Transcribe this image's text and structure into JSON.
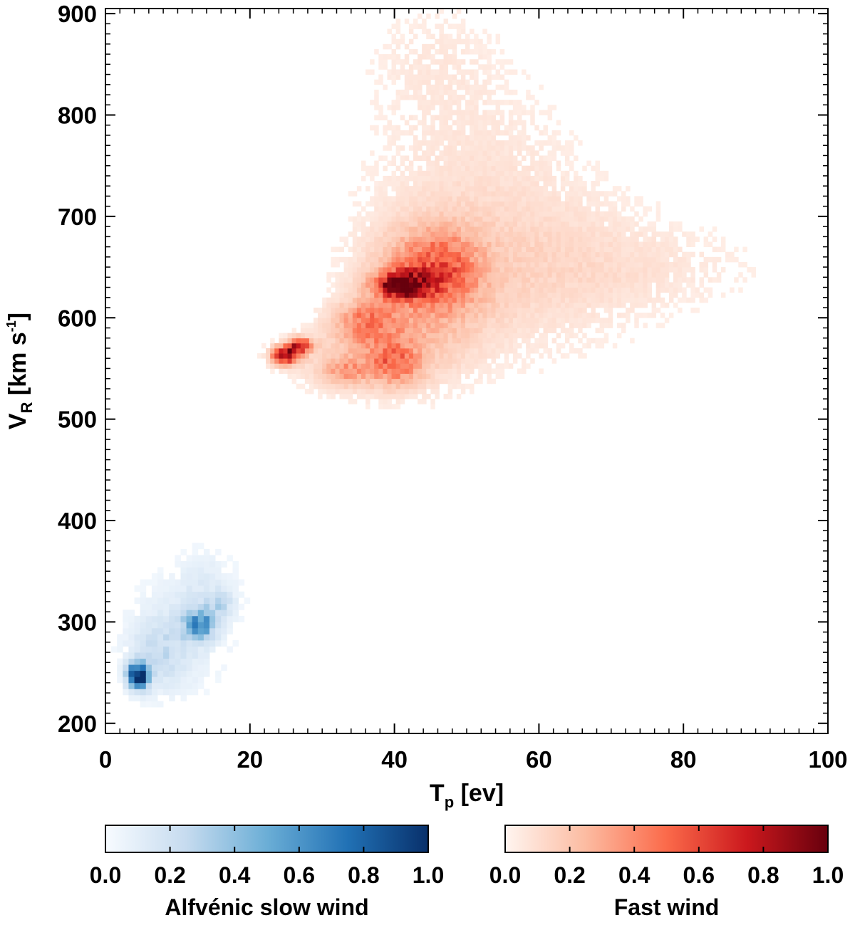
{
  "chart_data": {
    "type": "heatmap",
    "xlabel": {
      "main": "T",
      "sub": "p",
      "unit": " [ev]"
    },
    "ylabel": {
      "main": "V",
      "sub": "R",
      "unit_pre": " [km s",
      "sup": "-1",
      "unit_post": "]"
    },
    "xlim": [
      0,
      100
    ],
    "ylim": [
      190,
      905
    ],
    "x_ticks": [
      0,
      20,
      40,
      60,
      80,
      100
    ],
    "y_ticks": [
      200,
      300,
      400,
      500,
      600,
      700,
      800,
      900
    ],
    "x_tick_labels": [
      "0",
      "20",
      "40",
      "60",
      "80",
      "100"
    ],
    "y_tick_labels": [
      "200",
      "300",
      "400",
      "500",
      "600",
      "700",
      "800",
      "900"
    ],
    "series": [
      {
        "name": "Alfvénic slow wind",
        "colormap": "blues",
        "color_low": "#f7fbff",
        "color_high": "#08306b",
        "bin_size": [
          0.8,
          6
        ],
        "blobs": [
          {
            "x": 4.5,
            "y": 247,
            "sx": 1.0,
            "sy": 9,
            "amp": 1.0
          },
          {
            "x": 13,
            "y": 298,
            "sx": 1.5,
            "sy": 10,
            "amp": 0.55
          },
          {
            "x": 10,
            "y": 285,
            "sx": 4.5,
            "sy": 35,
            "amp": 0.14
          },
          {
            "x": 14,
            "y": 335,
            "sx": 3.0,
            "sy": 25,
            "amp": 0.1
          },
          {
            "x": 7,
            "y": 265,
            "sx": 2.5,
            "sy": 22,
            "amp": 0.15
          },
          {
            "x": 16,
            "y": 318,
            "sx": 1.2,
            "sy": 8,
            "amp": 0.18
          }
        ]
      },
      {
        "name": "Fast wind",
        "colormap": "reds",
        "color_low": "#fff5f0",
        "color_high": "#67000d",
        "bin_size": [
          0.6,
          5
        ],
        "blobs": [
          {
            "x": 41,
            "y": 633,
            "sx": 2.5,
            "sy": 9,
            "amp": 0.85
          },
          {
            "x": 25,
            "y": 563,
            "sx": 1.3,
            "sy": 6,
            "amp": 0.95
          },
          {
            "x": 27,
            "y": 573,
            "sx": 1.2,
            "sy": 5,
            "amp": 0.7
          },
          {
            "x": 46,
            "y": 650,
            "sx": 4.0,
            "sy": 25,
            "amp": 0.35
          },
          {
            "x": 36,
            "y": 595,
            "sx": 3.0,
            "sy": 15,
            "amp": 0.35
          },
          {
            "x": 40,
            "y": 555,
            "sx": 2.5,
            "sy": 15,
            "amp": 0.35
          },
          {
            "x": 33,
            "y": 548,
            "sx": 2.5,
            "sy": 10,
            "amp": 0.25
          },
          {
            "x": 44,
            "y": 620,
            "sx": 6.0,
            "sy": 45,
            "amp": 0.22
          },
          {
            "x": 58,
            "y": 650,
            "sx": 12.0,
            "sy": 60,
            "amp": 0.1
          },
          {
            "x": 50,
            "y": 750,
            "sx": 10.0,
            "sy": 80,
            "amp": 0.06
          },
          {
            "x": 45,
            "y": 860,
            "sx": 6.0,
            "sy": 40,
            "amp": 0.04
          },
          {
            "x": 36,
            "y": 560,
            "sx": 7.0,
            "sy": 25,
            "amp": 0.12
          },
          {
            "x": 75,
            "y": 650,
            "sx": 12.0,
            "sy": 30,
            "amp": 0.05
          }
        ]
      }
    ],
    "colorbars": [
      {
        "label": "Alfvénic slow wind",
        "ticks": [
          "0.0",
          "0.2",
          "0.4",
          "0.6",
          "0.8",
          "1.0"
        ],
        "range": [
          0,
          1
        ]
      },
      {
        "label": "Fast wind",
        "ticks": [
          "0.0",
          "0.2",
          "0.4",
          "0.6",
          "0.8",
          "1.0"
        ],
        "range": [
          0,
          1
        ]
      }
    ],
    "grid": false
  }
}
